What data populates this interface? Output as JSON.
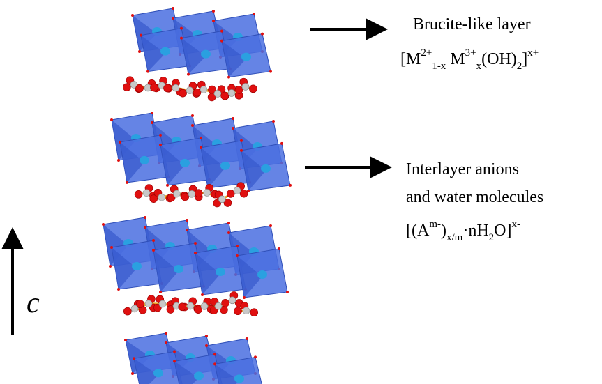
{
  "brucite_label": {
    "title": "Brucite-like layer",
    "formula": [
      "[M",
      "2+",
      "1-x",
      " M",
      "3+",
      "x",
      "(OH)",
      "2",
      "]",
      "x+"
    ]
  },
  "interlayer_label": {
    "lines": [
      "Interlayer anions",
      "and water molecules"
    ],
    "formula": [
      "[(A",
      "m-",
      ")",
      "x/m",
      "·nH",
      "2",
      "O]",
      "x-"
    ]
  },
  "axis_label": "c"
}
